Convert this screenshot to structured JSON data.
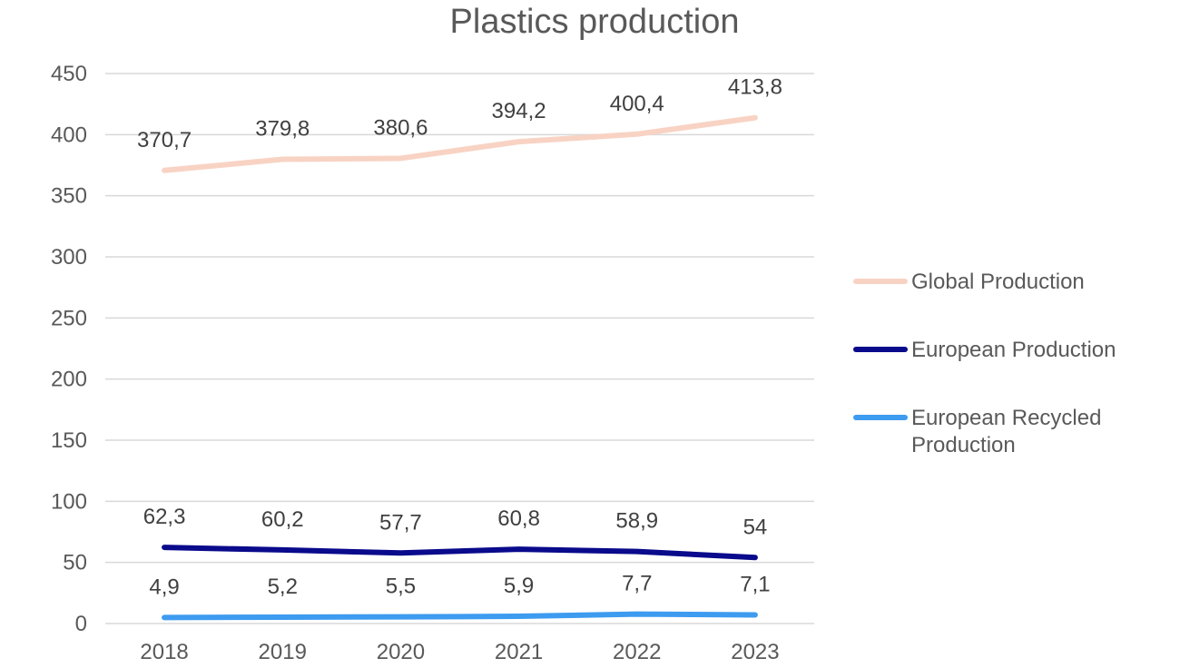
{
  "chart_data": {
    "type": "line",
    "title": "Plastics production",
    "xlabel": "",
    "ylabel": "",
    "categories": [
      "2018",
      "2019",
      "2020",
      "2021",
      "2022",
      "2023"
    ],
    "ylim": [
      0,
      450
    ],
    "yticks": [
      0,
      50,
      100,
      150,
      200,
      250,
      300,
      350,
      400,
      450
    ],
    "grid": true,
    "legend_position": "right",
    "series": [
      {
        "name": "Global Production",
        "color": "#f8d3c4",
        "values": [
          370.7,
          379.8,
          380.6,
          394.2,
          400.4,
          413.8
        ],
        "labels": [
          "370,7",
          "379,8",
          "380,6",
          "394,2",
          "400,4",
          "413,8"
        ]
      },
      {
        "name": "European Production",
        "color": "#0a0a8c",
        "values": [
          62.3,
          60.2,
          57.7,
          60.8,
          58.9,
          54
        ],
        "labels": [
          "62,3",
          "60,2",
          "57,7",
          "60,8",
          "58,9",
          "54"
        ]
      },
      {
        "name": "European Recycled Production",
        "name_lines": [
          "European Recycled",
          "Production"
        ],
        "color": "#3d9bf0",
        "values": [
          4.9,
          5.2,
          5.5,
          5.9,
          7.7,
          7.1
        ],
        "labels": [
          "4,9",
          "5,2",
          "5,5",
          "5,9",
          "7,7",
          "7,1"
        ]
      }
    ]
  }
}
